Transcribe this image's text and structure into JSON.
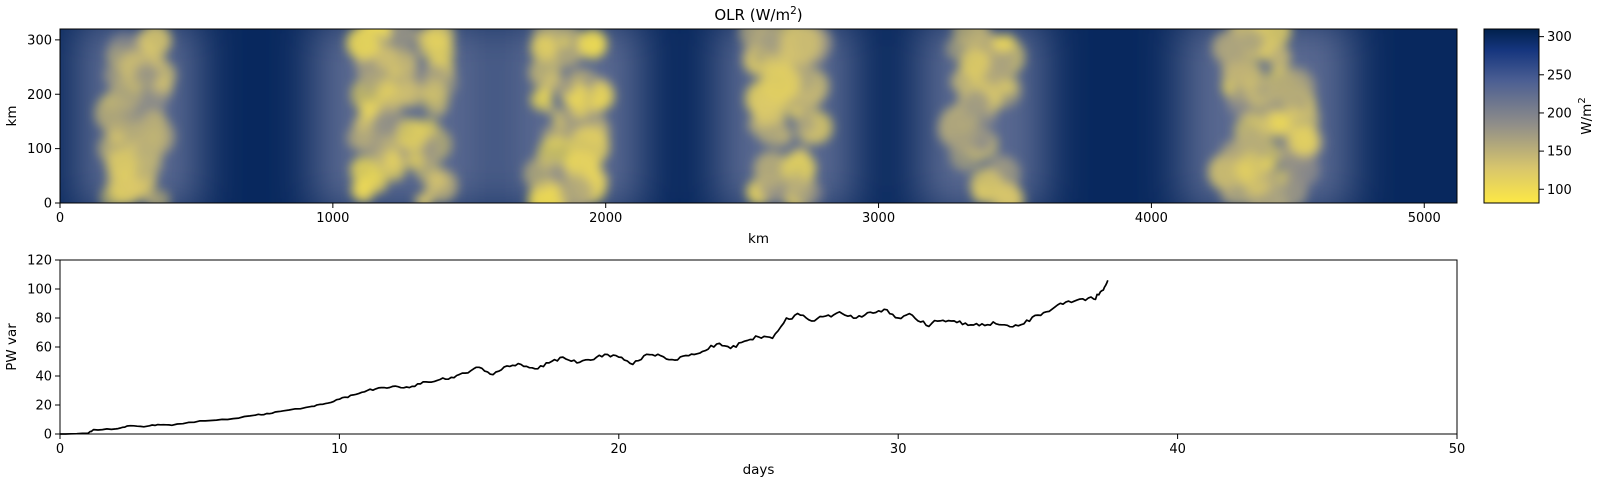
{
  "chart_data": [
    {
      "type": "heatmap",
      "title": {
        "main": "OLR (W/m",
        "sup": "2",
        "end": ")"
      },
      "xlabel": "km",
      "ylabel": "km",
      "xlim": [
        0,
        5120
      ],
      "ylim": [
        0,
        320
      ],
      "xticks": [
        0,
        1000,
        2000,
        3000,
        4000,
        5000
      ],
      "yticks": [
        0,
        100,
        200,
        300
      ],
      "colormap": [
        "#fde845",
        "#d8c66c",
        "#908e89",
        "#4c5f93",
        "#15357e",
        "#00204c"
      ],
      "colorbar": {
        "label": {
          "main": "W/m",
          "sup": "2"
        },
        "range": [
          82,
          310
        ],
        "ticks": [
          100,
          150,
          200,
          250,
          300
        ]
      },
      "background_olr": 300,
      "convective_bands": [
        {
          "x_km": [
            150,
            420
          ],
          "olr_min": 110
        },
        {
          "x_km": [
            1020,
            1480
          ],
          "olr_min": 95
        },
        {
          "x_km": [
            1710,
            2040
          ],
          "olr_min": 95
        },
        {
          "x_km": [
            2500,
            2820
          ],
          "olr_min": 110
        },
        {
          "x_km": [
            3240,
            3520
          ],
          "olr_min": 105
        },
        {
          "x_km": [
            4200,
            4640
          ],
          "olr_min": 100
        }
      ]
    },
    {
      "type": "line",
      "xlabel": "days",
      "ylabel": "PW var",
      "xlim": [
        0,
        50
      ],
      "ylim": [
        0,
        120
      ],
      "xticks": [
        0,
        10,
        20,
        30,
        40,
        50
      ],
      "yticks": [
        0,
        20,
        40,
        60,
        80,
        100,
        120
      ],
      "line_color": "#000000",
      "series": [
        {
          "x": [
            0,
            1.0,
            1.2,
            2.0,
            2.4,
            3.0,
            3.5,
            4.0,
            5.0,
            6.0,
            7.0,
            7.5,
            8.0,
            9.0,
            9.5,
            10.0,
            10.5,
            11.0,
            11.5,
            12.0,
            12.5,
            13.0,
            13.5,
            14.0,
            14.5,
            15.0,
            15.5,
            16.0,
            16.5,
            17.0,
            17.5,
            18.0,
            18.5,
            19.0,
            19.5,
            20.0,
            20.5,
            21.0,
            21.5,
            22.0,
            22.5,
            23.0,
            23.5,
            24.0,
            24.5,
            25.0,
            25.5,
            26.0,
            26.5,
            27.0,
            27.5,
            28.0,
            28.5,
            29.0,
            29.5,
            30.0,
            30.5,
            31.0,
            31.5,
            32.0,
            32.5,
            33.0,
            33.5,
            34.0,
            34.5,
            35.0,
            35.5,
            36.0,
            36.5,
            37.0,
            37.3,
            37.5
          ],
          "y": [
            0,
            0.5,
            3,
            3.5,
            5.5,
            5,
            6.5,
            6,
            9,
            10,
            13,
            14,
            16,
            19,
            21,
            24,
            27,
            30,
            32,
            33,
            32,
            36,
            37,
            39,
            42,
            46,
            41,
            47,
            48,
            45,
            49,
            53,
            49,
            51,
            55,
            53,
            48,
            55,
            54,
            51,
            54,
            57,
            62,
            59,
            64,
            67,
            66,
            80,
            82,
            78,
            82,
            83,
            80,
            84,
            86,
            80,
            82,
            75,
            78,
            78,
            75,
            76,
            76,
            74,
            76,
            82,
            86,
            91,
            93,
            93,
            99,
            106
          ]
        }
      ]
    }
  ]
}
